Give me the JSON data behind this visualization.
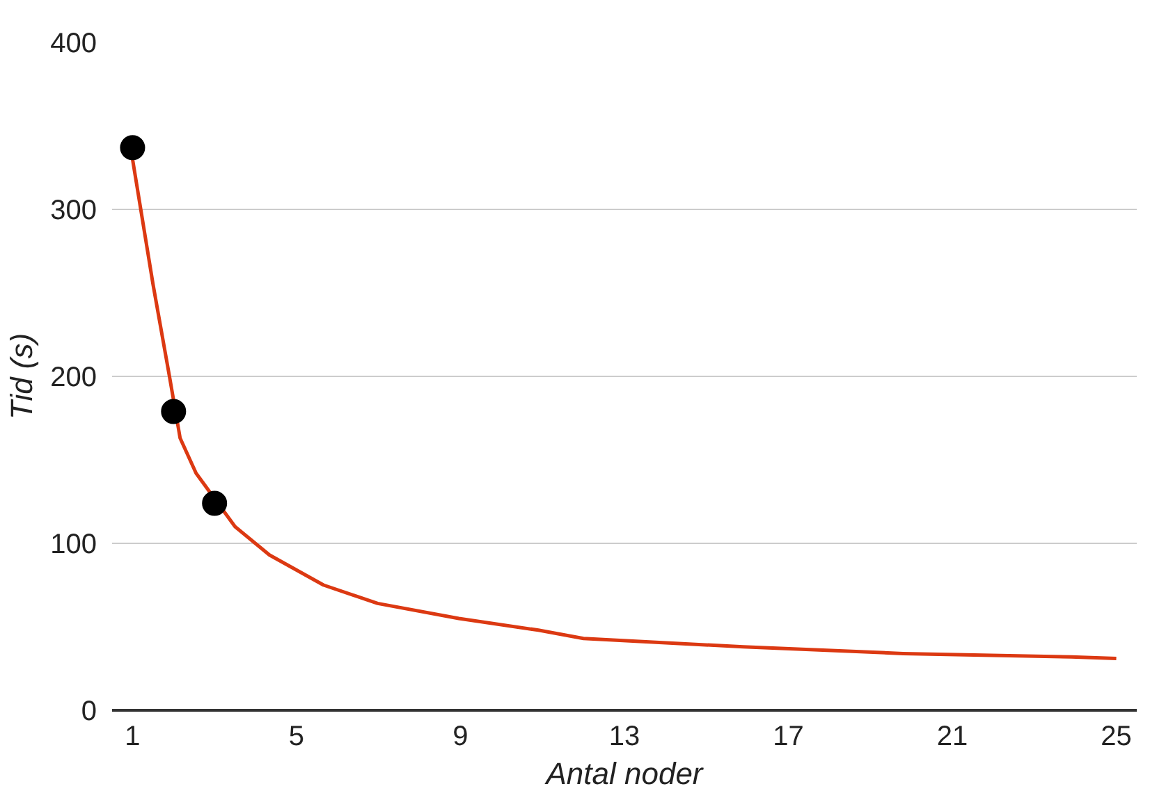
{
  "chart_data": {
    "type": "scatter",
    "xlabel": "Antal noder",
    "ylabel": "Tid (s)",
    "xlim": [
      0.5,
      25.5
    ],
    "ylim": [
      0,
      400
    ],
    "xticks": [
      1,
      5,
      9,
      13,
      17,
      21,
      25
    ],
    "yticks": [
      0,
      100,
      200,
      300,
      400
    ],
    "grid": "y",
    "marker": "circle",
    "series": [
      {
        "type": "line",
        "marker": "none",
        "color": "#dc3912",
        "x": [
          1,
          1.5,
          1.9,
          2.16,
          2.55,
          3.5,
          4.34,
          5.66,
          6.98,
          8.96,
          10.9,
          12,
          15.9,
          19.8,
          23.9,
          25
        ],
        "values": [
          330,
          255,
          200,
          163,
          142,
          110,
          93,
          75,
          64,
          55,
          48,
          43,
          38,
          34,
          32,
          31
        ]
      },
      {
        "color": "#000000",
        "x": [
          1,
          2,
          3
        ],
        "values": [
          337,
          179,
          124
        ]
      }
    ]
  }
}
